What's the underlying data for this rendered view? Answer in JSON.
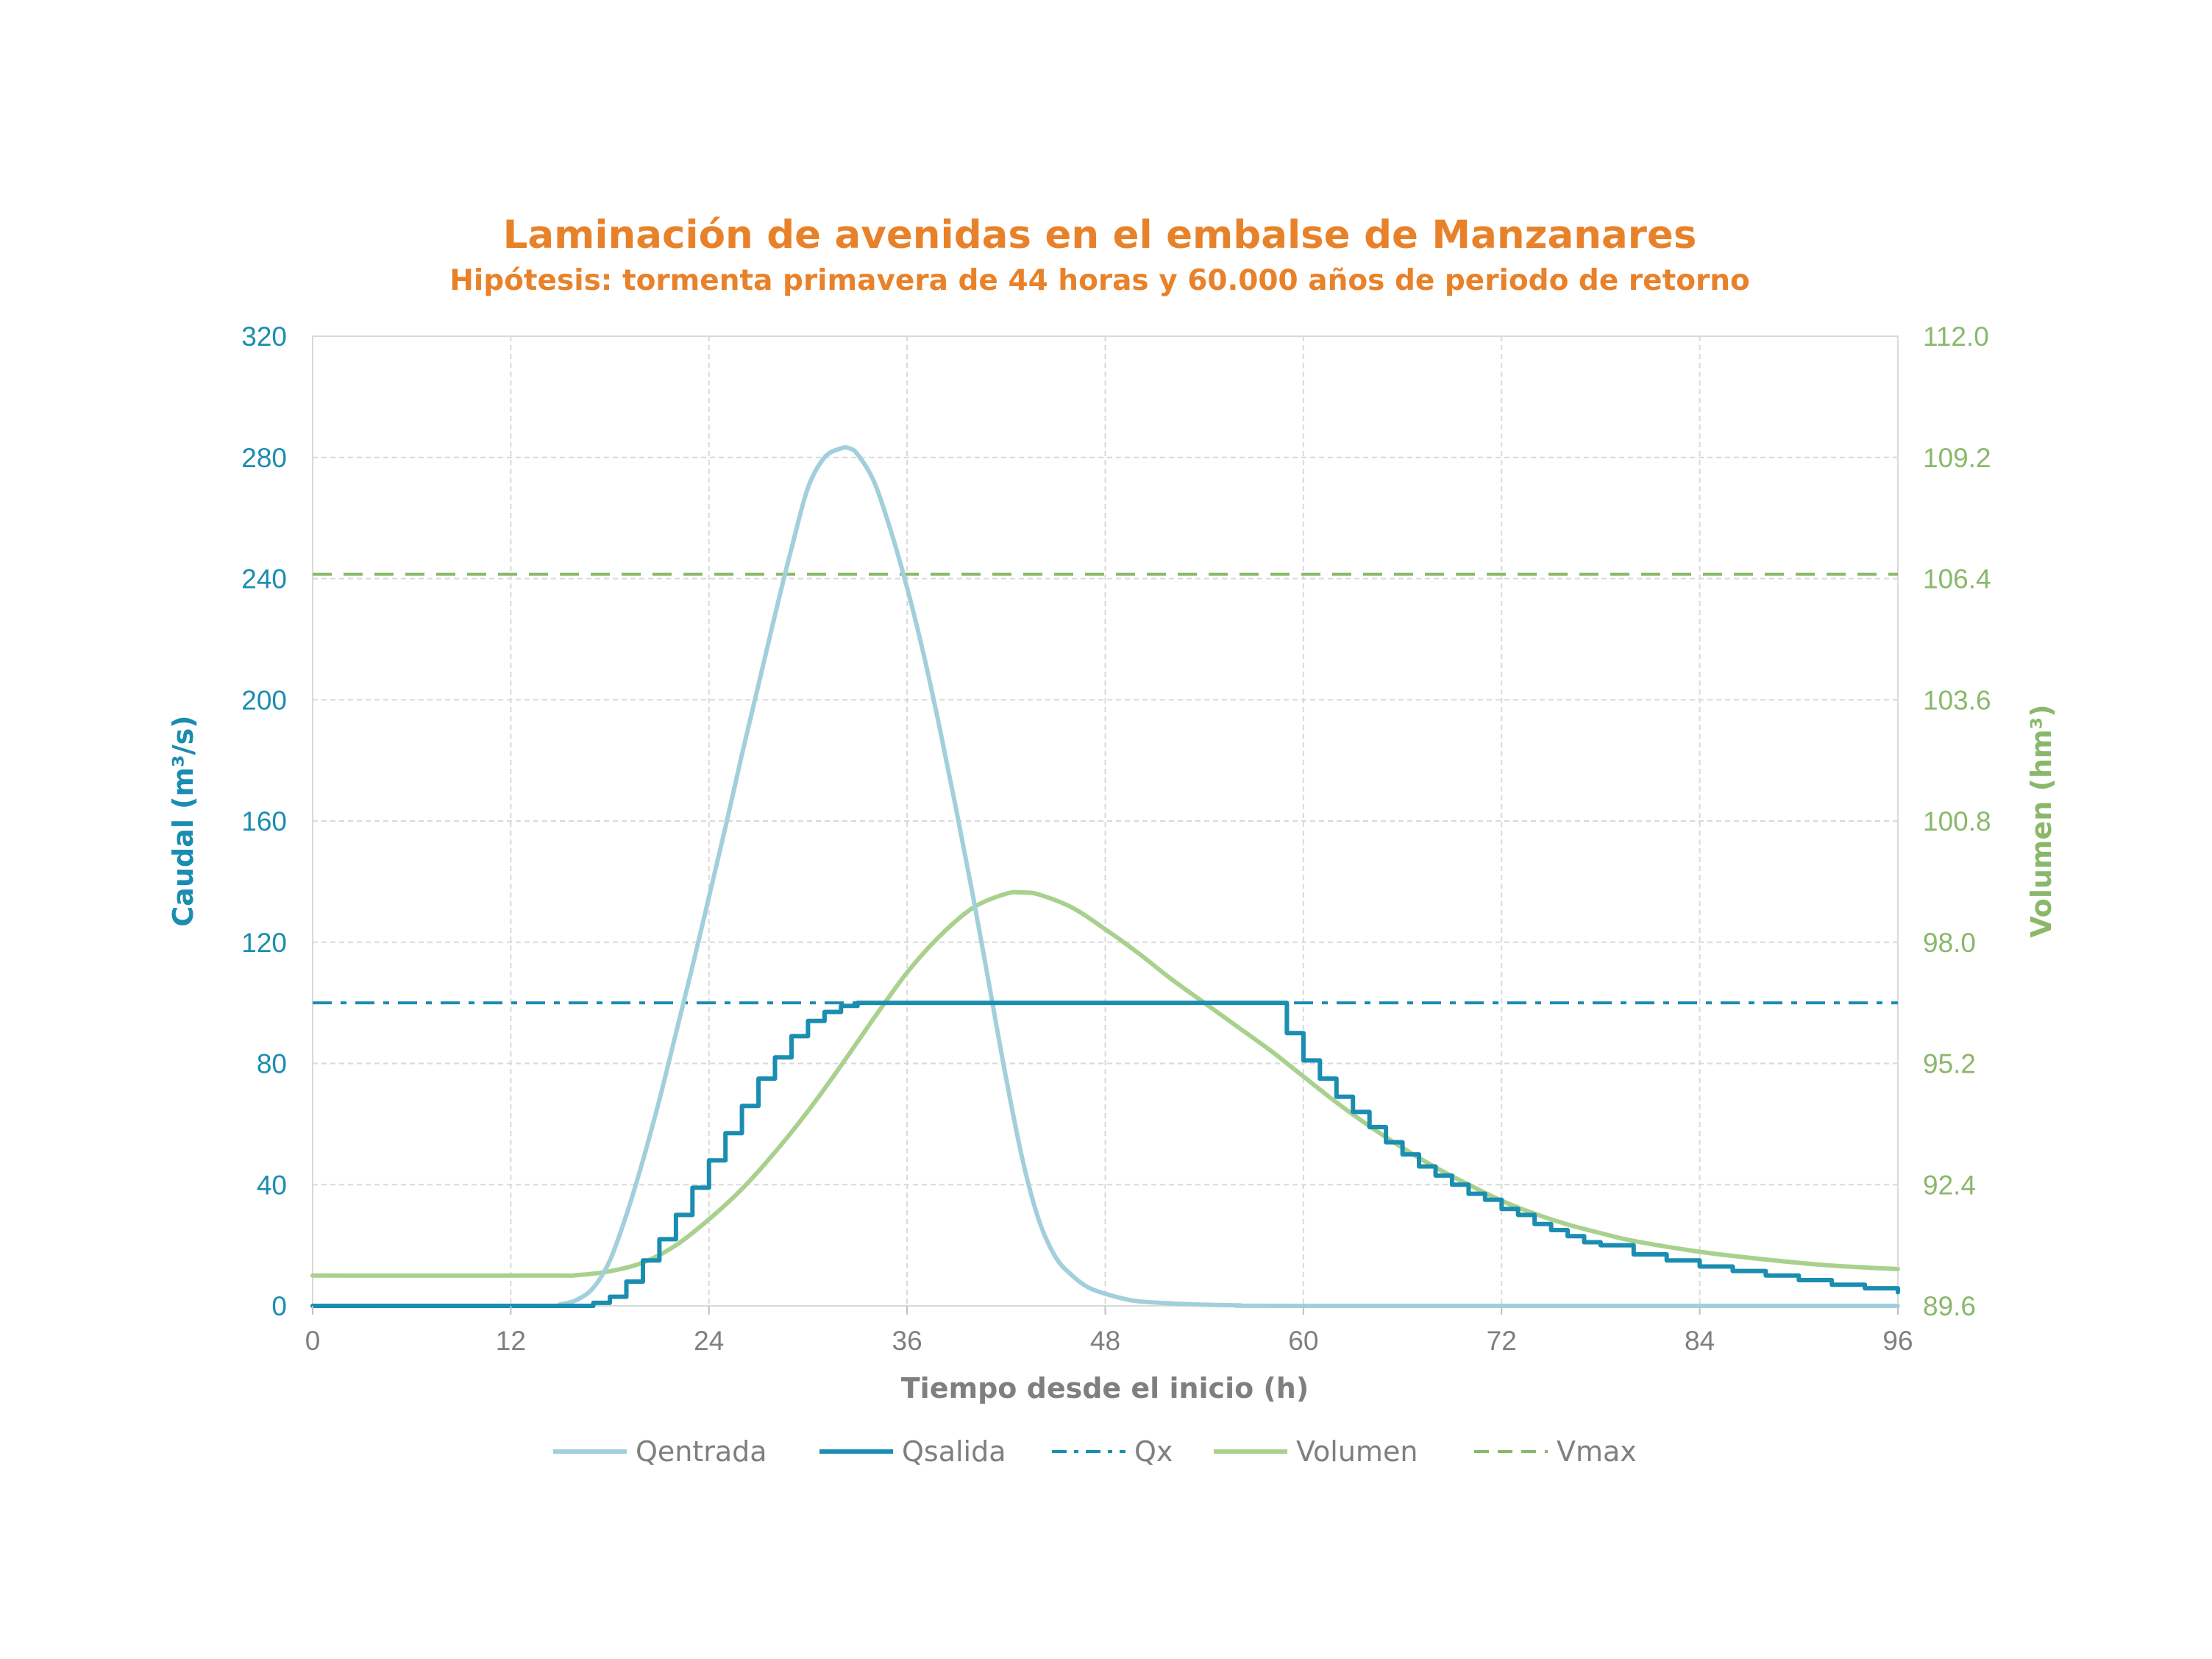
{
  "chart_data": {
    "type": "line",
    "title": "Laminación de avenidas en el embalse de Manzanares",
    "subtitle": "Hipótesis: tormenta primavera de 44 horas y 60.000 años de periodo de retorno",
    "xlabel": "Tiempo desde el inicio (h)",
    "ylabel": "Caudal (m³/s)",
    "y2label": "Volumen (hm³)",
    "xlim": [
      0,
      96
    ],
    "ylim": [
      0,
      320
    ],
    "y2lim": [
      89.6,
      112.0
    ],
    "xticks": [
      "0",
      "12",
      "24",
      "36",
      "48",
      "60",
      "72",
      "84",
      "96"
    ],
    "yticks": [
      "0",
      "40",
      "80",
      "120",
      "160",
      "200",
      "240",
      "280",
      "320"
    ],
    "y2ticks": [
      "89.6",
      "92.4",
      "95.2",
      "98.0",
      "100.8",
      "103.6",
      "106.4",
      "109.2",
      "112.0"
    ],
    "grid": true,
    "legend_position": "bottom",
    "colors": {
      "title": "#e8822a",
      "qentrada": "#a2cfdc",
      "qsalida": "#1a8db1",
      "qx": "#1a8db1",
      "volumen": "#a9d18e",
      "vmax": "#8ab86b",
      "left_axis": "#1a8db1",
      "right_axis": "#8ab86b",
      "grid": "#d9d9d9"
    },
    "series": [
      {
        "name": "Qentrada",
        "axis": "left",
        "style": "solid",
        "x": [
          0,
          14,
          15,
          16,
          17,
          18,
          19,
          20,
          21,
          22,
          23,
          24,
          25,
          26,
          27,
          28,
          29,
          30,
          31,
          32,
          32.5,
          33,
          34,
          35,
          36,
          37,
          38,
          39,
          40,
          41,
          42,
          43,
          44,
          45,
          46,
          47,
          48,
          49,
          50,
          52,
          54,
          56,
          60,
          96
        ],
        "y": [
          0,
          0,
          0.5,
          2,
          6,
          15,
          30,
          48,
          68,
          90,
          112,
          135,
          158,
          182,
          205,
          228,
          250,
          270,
          280,
          283,
          283,
          281,
          272,
          256,
          237,
          215,
          190,
          163,
          135,
          105,
          75,
          48,
          28,
          16,
          10,
          6,
          4,
          2.5,
          1.5,
          0.8,
          0.4,
          0.2,
          0,
          0
        ]
      },
      {
        "name": "Qsalida",
        "axis": "left",
        "style": "step",
        "x": [
          0,
          16,
          17,
          18,
          19,
          20,
          21,
          22,
          23,
          24,
          25,
          26,
          27,
          28,
          29,
          30,
          31,
          32,
          33,
          34,
          58,
          59,
          60,
          61,
          62,
          63,
          64,
          65,
          66,
          67,
          68,
          69,
          70,
          71,
          72,
          73,
          74,
          75,
          76,
          77,
          78,
          80,
          82,
          84,
          86,
          88,
          90,
          92,
          94,
          96
        ],
        "y": [
          0,
          0,
          1,
          3,
          8,
          15,
          22,
          30,
          39,
          48,
          57,
          66,
          75,
          82,
          89,
          94,
          97,
          99,
          100,
          100,
          100,
          90,
          81,
          75,
          69,
          64,
          59,
          54,
          50,
          46,
          43,
          40,
          37,
          35,
          32,
          30,
          27,
          25,
          23,
          21,
          20,
          17,
          15,
          13,
          11.5,
          10,
          8.5,
          7,
          5.8,
          4.5
        ]
      },
      {
        "name": "Qx",
        "axis": "left",
        "style": "dash-dot",
        "x": [
          0,
          96
        ],
        "y": [
          100,
          100
        ]
      },
      {
        "name": "Volumen",
        "axis": "right",
        "style": "solid",
        "x": [
          0,
          14,
          16,
          18,
          20,
          22,
          24,
          26,
          28,
          30,
          32,
          34,
          36,
          38,
          40,
          42,
          43,
          44,
          46,
          48,
          50,
          52,
          54,
          56,
          58,
          60,
          62,
          64,
          66,
          68,
          70,
          72,
          74,
          76,
          78,
          80,
          84,
          88,
          92,
          96
        ],
        "y": [
          90.3,
          90.3,
          90.31,
          90.4,
          90.6,
          91.0,
          91.6,
          92.3,
          93.15,
          94.1,
          95.15,
          96.25,
          97.3,
          98.15,
          98.8,
          99.12,
          99.15,
          99.1,
          98.8,
          98.3,
          97.75,
          97.15,
          96.6,
          96.05,
          95.5,
          94.9,
          94.3,
          93.75,
          93.25,
          92.8,
          92.4,
          92.03,
          91.73,
          91.48,
          91.28,
          91.1,
          90.85,
          90.67,
          90.53,
          90.45
        ]
      },
      {
        "name": "Vmax",
        "axis": "right",
        "style": "dash",
        "x": [
          0,
          96
        ],
        "y": [
          106.5,
          106.5
        ]
      }
    ]
  }
}
